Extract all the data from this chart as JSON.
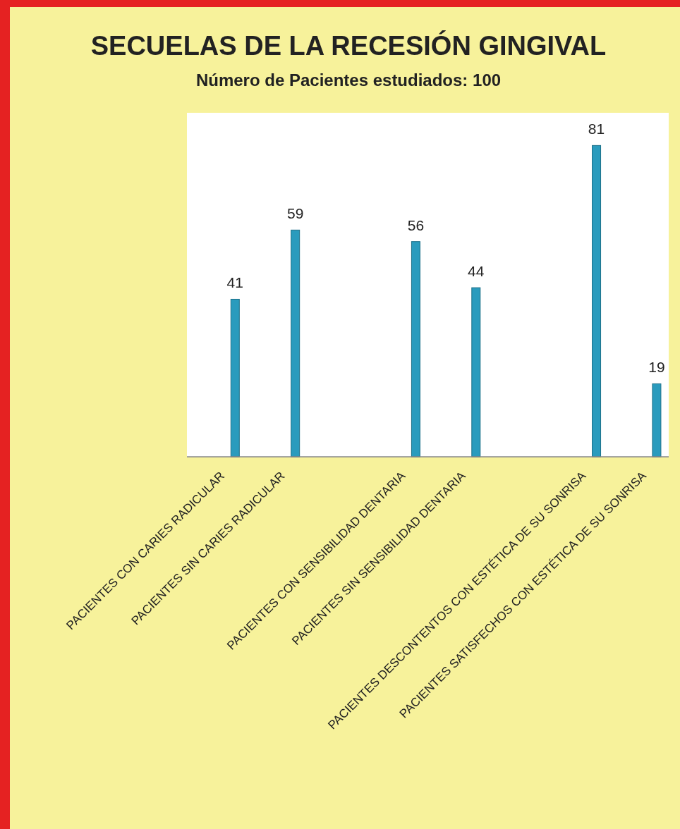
{
  "chart_data": {
    "type": "bar",
    "title": "SECUELAS DE LA RECESIÓN GINGIVAL",
    "subtitle": "Número de Pacientes estudiados: 100",
    "categories": [
      "PACIENTES CON CARIES RADICULAR",
      "PACIENTES SIN CARIES RADICULAR",
      null,
      "PACIENTES CON SENSIBILIDAD DENTARIA",
      "PACIENTES SIN SENSIBILIDAD DENTARIA",
      null,
      "PACIENTES DESCONTENTOS CON ESTÉTICA DE SU SONRISA",
      "PACIENTES SATISFECHOS CON ESTÉTICA DE SU SONRISA"
    ],
    "values": [
      41,
      59,
      null,
      56,
      44,
      null,
      81,
      19
    ],
    "color": "#2a9bbd",
    "data_labels": true
  }
}
